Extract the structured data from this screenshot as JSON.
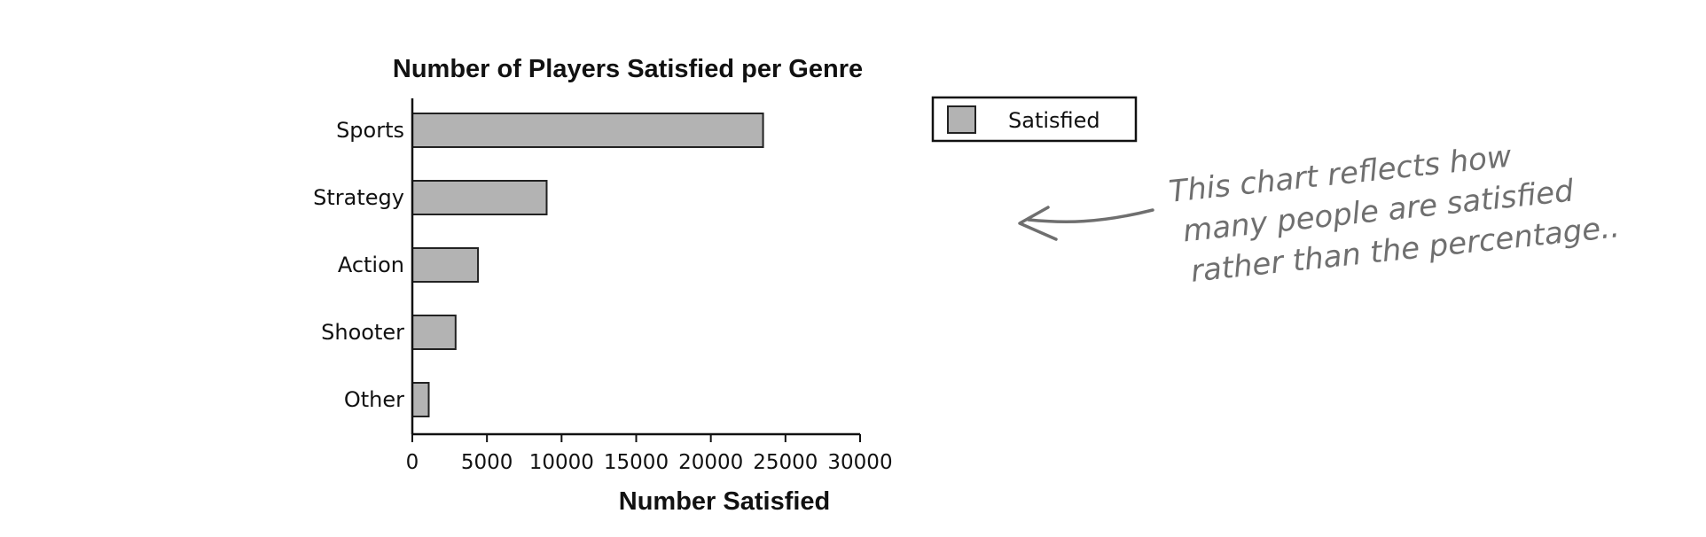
{
  "chart_data": {
    "type": "bar",
    "orientation": "horizontal",
    "title": "Number of Players Satisfied per Genre",
    "xlabel": "Number Satisfied",
    "ylabel": "",
    "categories": [
      "Sports",
      "Strategy",
      "Action",
      "Shooter",
      "Other"
    ],
    "series": [
      {
        "name": "Satisfied",
        "values": [
          23500,
          9000,
          4400,
          2900,
          1100
        ],
        "color": "#b3b3b3"
      }
    ],
    "xlim": [
      0,
      30000
    ],
    "xticks": [
      "0",
      "5000",
      "10000",
      "15000",
      "20000",
      "25000",
      "30000"
    ],
    "grid": false,
    "legend": {
      "placement": "top-right",
      "entries": [
        "Satisfied"
      ]
    }
  },
  "annotation": {
    "lines": [
      "This chart reflects how",
      "many people are satisfied",
      "rather than the percentage.."
    ],
    "color": "#6f6f6f"
  }
}
